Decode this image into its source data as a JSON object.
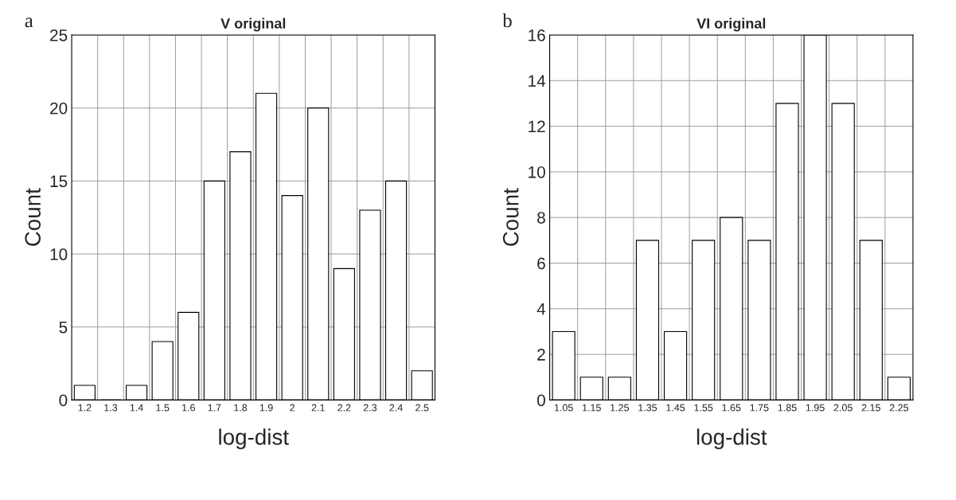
{
  "chart_data": [
    {
      "type": "bar",
      "title": "V original",
      "xlabel": "log-dist",
      "ylabel": "Count",
      "annotations": [
        "a"
      ],
      "categories": [
        "1.2",
        "1.3",
        "1.4",
        "1.5",
        "1.6",
        "1.7",
        "1.8",
        "1.9",
        "2",
        "2.1",
        "2.2",
        "2.3",
        "2.4",
        "2.5"
      ],
      "values": [
        1,
        0,
        1,
        4,
        6,
        15,
        17,
        21,
        14,
        20,
        9,
        13,
        15,
        2
      ],
      "color": "#ffffff",
      "ylim": [
        0,
        25
      ],
      "yticks": [
        0,
        5,
        10,
        15,
        20,
        25
      ],
      "grid": true
    },
    {
      "type": "bar",
      "title": "VI original",
      "xlabel": "log-dist",
      "ylabel": "Count",
      "annotations": [
        "b"
      ],
      "categories": [
        "1.05",
        "1.15",
        "1.25",
        "1.35",
        "1.45",
        "1.55",
        "1.65",
        "1.75",
        "1.85",
        "1.95",
        "2.05",
        "2.15",
        "2.25"
      ],
      "values": [
        3,
        1,
        1,
        7,
        3,
        7,
        8,
        7,
        13,
        16,
        13,
        7,
        1
      ],
      "color": "#ffffff",
      "ylim": [
        0,
        16
      ],
      "yticks": [
        0,
        2,
        4,
        6,
        8,
        10,
        12,
        14,
        16
      ],
      "grid": true
    }
  ]
}
